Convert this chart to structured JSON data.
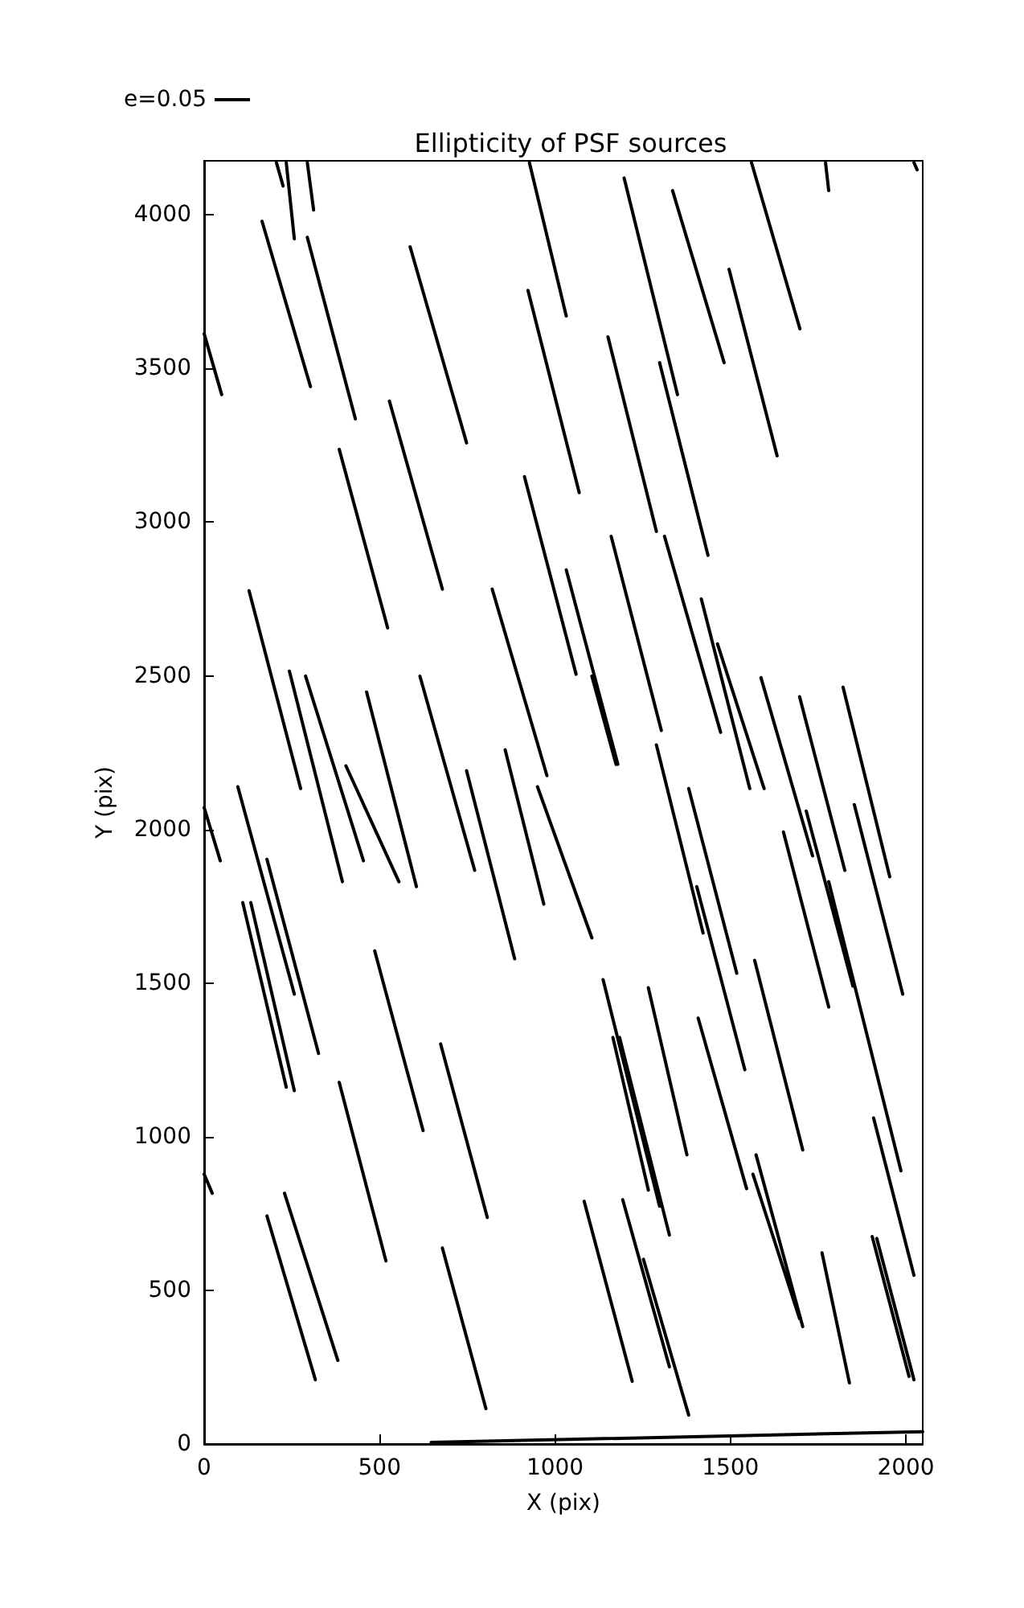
{
  "chart_data": {
    "type": "line",
    "title": "Ellipticity of PSF sources",
    "xlabel": "X (pix)",
    "ylabel": "Y (pix)",
    "xlim": [
      0,
      2048
    ],
    "ylim": [
      0,
      4176
    ],
    "xticks": [
      0,
      500,
      1000,
      1500,
      2000
    ],
    "yticks": [
      0,
      500,
      1000,
      1500,
      2000,
      2500,
      3000,
      3500,
      4000
    ],
    "grid": false,
    "legend": "top left",
    "marker": "none",
    "line_style": "solid",
    "series": [
      {
        "name": "e=0.05",
        "color": "#000000",
        "x": [
          0,
          50,
          null,
          165,
          303,
          null,
          294,
          431,
          null,
          587,
          748,
          null,
          385,
          523,
          null,
          528,
          679,
          null,
          128,
          275,
          null,
          243,
          394,
          null,
          289,
          454,
          null,
          404,
          555,
          null,
          463,
          605,
          null,
          615,
          771,
          null,
          0,
          46,
          null,
          96,
          257,
          null,
          179,
          326,
          null,
          110,
          234,
          null,
          133,
          257,
          null,
          486,
          624,
          null,
          0,
          23,
          null,
          179,
          317,
          null,
          229,
          381,
          null,
          385,
          518,
          null,
          674,
          807,
          null,
          679,
          803,
          null,
          748,
          885,
          null,
          858,
          968,
          null,
          950,
          1105,
          null,
          821,
          977,
          null,
          913,
          1060,
          null,
          1032,
          1179,
          null,
          923,
          1069,
          null,
          927,
          1032,
          null,
          1105,
          1174,
          null,
          1160,
          1303,
          null,
          1151,
          1289,
          null,
          1197,
          1349,
          null,
          1298,
          1436,
          null,
          1335,
          1482,
          null,
          1560,
          1698,
          null,
          1496,
          1633,
          null,
          1312,
          1472,
          null,
          1417,
          1555,
          null,
          1463,
          1596,
          null,
          1587,
          1734,
          null,
          1289,
          1422,
          null,
          1381,
          1518,
          null,
          1404,
          1541,
          null,
          1569,
          1706,
          null,
          1651,
          1780,
          null,
          1716,
          1849,
          null,
          1697,
          1826,
          null,
          1780,
          1986,
          null,
          1821,
          1954,
          null,
          1853,
          1991,
          null,
          1266,
          1376,
          null,
          1137,
          1298,
          null,
          1165,
          1266,
          null,
          1184,
          1326,
          null,
          1083,
          1220,
          null,
          1193,
          1326,
          null,
          1252,
          1381,
          null,
          1408,
          1546,
          null,
          1573,
          1706,
          null,
          1564,
          1697,
          null,
          1761,
          1839,
          null,
          1908,
          2023,
          null,
          1904,
          2009,
          null,
          1917,
          2023,
          null,
          206,
          225,
          null,
          234,
          257,
          null,
          294,
          312,
          null,
          1771,
          1780,
          null,
          2023,
          2032,
          null,
          647,
          2048
        ],
        "values": [
          3613,
          3415,
          null,
          3979,
          3441,
          null,
          3927,
          3336,
          null,
          3896,
          3258,
          null,
          3237,
          2656,
          null,
          3394,
          2782,
          null,
          2777,
          2133,
          null,
          2515,
          1830,
          null,
          2499,
          1898,
          null,
          2207,
          1830,
          null,
          2447,
          1814,
          null,
          2499,
          1867,
          null,
          2071,
          1898,
          null,
          2139,
          1464,
          null,
          1903,
          1271,
          null,
          1762,
          1161,
          null,
          1762,
          1150,
          null,
          1605,
          1020,
          null,
          878,
          816,
          null,
          742,
          209,
          null,
          816,
          272,
          null,
          1177,
          596,
          null,
          1302,
          737,
          null,
          638,
          115,
          null,
          2191,
          1579,
          null,
          2259,
          1757,
          null,
          2139,
          1647,
          null,
          2782,
          2175,
          null,
          3148,
          2505,
          null,
          2845,
          2212,
          null,
          3754,
          3096,
          null,
          4170,
          3671,
          null,
          2499,
          2212,
          null,
          2954,
          2322,
          null,
          3603,
          2970,
          null,
          4120,
          3415,
          null,
          3519,
          2892,
          null,
          4079,
          3519,
          null,
          4170,
          3629,
          null,
          3823,
          3216,
          null,
          2954,
          2316,
          null,
          2750,
          2133,
          null,
          2604,
          2133,
          null,
          2494,
          1914,
          null,
          2275,
          1663,
          null,
          2133,
          1532,
          null,
          1814,
          1218,
          null,
          1574,
          957,
          null,
          1992,
          1422,
          null,
          2060,
          1490,
          null,
          2432,
          1867,
          null,
          1830,
          889,
          null,
          2463,
          1846,
          null,
          2081,
          1464,
          null,
          1485,
          941,
          null,
          1511,
          774,
          null,
          1323,
          826,
          null,
          1323,
          680,
          null,
          790,
          204,
          null,
          795,
          251,
          null,
          601,
          94,
          null,
          1386,
          831,
          null,
          941,
          382,
          null,
          878,
          408,
          null,
          622,
          199,
          null,
          1061,
          549,
          null,
          675,
          220,
          null,
          669,
          209,
          null,
          4170,
          4094,
          null,
          4170,
          3922,
          null,
          4170,
          4016,
          null,
          4170,
          4079,
          null,
          4170,
          4147,
          null,
          5,
          40
        ]
      }
    ]
  }
}
